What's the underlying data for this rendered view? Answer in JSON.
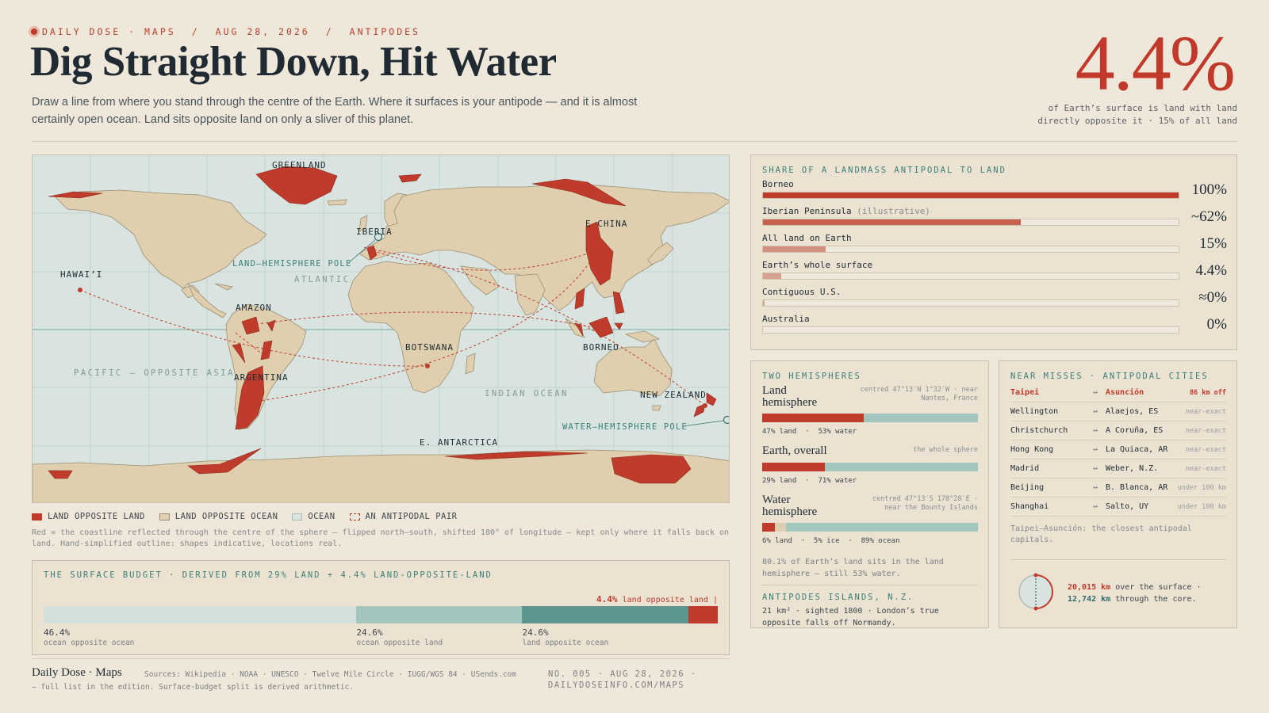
{
  "header": {
    "kicker": [
      "DAILY DOSE · MAPS",
      "AUG 28, 2026",
      "ANTIPODES"
    ],
    "kicker_sep": "/",
    "title": "Dig Straight Down, Hit Water",
    "subtitle": "Draw a line from where you stand through the centre of the Earth. Where it surfaces is your antipode — and it is almost certainly open ocean. Land sits opposite land on only a sliver of this planet.",
    "big_number": "4.4%",
    "big_caption_1": "of Earth’s surface is land with land",
    "big_caption_2": "directly opposite it · 15% of all land"
  },
  "map": {
    "labels": {
      "greenland": "GREENLAND",
      "iberia": "IBERIA",
      "e_china": "E CHINA",
      "hawaii": "HAWAI’I",
      "land_pole": "LAND–HEMISPHERE POLE",
      "atlantic": "ATLANTIC",
      "amazon": "AMAZON",
      "botswana": "BOTSWANA",
      "borneo": "BORNEO",
      "pacific": "PACIFIC — OPPOSITE ASIA",
      "argentina": "ARGENTINA",
      "indian": "INDIAN OCEAN",
      "new_zealand": "NEW ZEALAND",
      "water_pole": "WATER–HEMISPHERE POLE",
      "antarctica": "E. ANTARCTICA"
    },
    "colors": {
      "ocean": "#d9e4e0",
      "land": "#dfcfae",
      "land_opposite_land": "#bf3b2c",
      "grid": "#c4d3ce",
      "equator": "#8fb7ae"
    }
  },
  "legend": {
    "items": [
      "LAND OPPOSITE LAND",
      "LAND OPPOSITE OCEAN",
      "OCEAN",
      "AN ANTIPODAL PAIR"
    ],
    "note": "Red = the coastline reflected through the centre of the sphere — flipped north–south, shifted 180° of longitude — kept only where it falls back on land. Hand-simplified outline: shapes indicative, locations real."
  },
  "budget": {
    "heading": "THE SURFACE BUDGET · DERIVED FROM 29% LAND + 4.4% LAND-OPPOSITE-LAND",
    "flag_value": "4.4%",
    "flag_text": "land opposite land",
    "segments": [
      {
        "pct_label": "46.4%",
        "caption": "ocean opposite ocean",
        "value": 46.4,
        "color": "#d3e1dd"
      },
      {
        "pct_label": "24.6%",
        "caption": "ocean opposite land",
        "value": 24.6,
        "color": "#a2c5bd"
      },
      {
        "pct_label": "24.6%",
        "caption": "land opposite ocean",
        "value": 24.6,
        "color": "#5e958e"
      },
      {
        "pct_label": "",
        "caption": "",
        "value": 4.4,
        "color": "#bf3b2c"
      }
    ]
  },
  "footer": {
    "brand": "Daily Dose · Maps",
    "sources": "Sources: Wikipedia · NOAA · UNESCO · Twelve Mile Circle · IUGG/WGS 84 · USends.com — full list in the edition. Surface-budget split is derived arithmetic.",
    "edition_1": "NO. 005 · AUG 28, 2026 ·",
    "edition_2": "DAILYDOSEINFO.COM/MAPS"
  },
  "share": {
    "heading": "SHARE OF A LANDMASS ANTIPODAL TO LAND",
    "rows": [
      {
        "label": "Borneo",
        "note": "",
        "value_label": "100%",
        "value": 100,
        "color": "#bf3b2c"
      },
      {
        "label": "Iberian Peninsula",
        "note": "(illustrative)",
        "value_label": "~62%",
        "value": 62,
        "color": "#c85e4d"
      },
      {
        "label": "All land on Earth",
        "note": "",
        "value_label": "15%",
        "value": 15,
        "color": "#d4907f"
      },
      {
        "label": "Earth’s whole surface",
        "note": "",
        "value_label": "4.4%",
        "value": 4.4,
        "color": "#d9a190"
      },
      {
        "label": "Contiguous U.S.",
        "note": "",
        "value_label": "≈0%",
        "value": 0.4,
        "color": "#d9a190"
      },
      {
        "label": "Australia",
        "note": "",
        "value_label": "0%",
        "value": 0,
        "color": "#d9a190"
      }
    ]
  },
  "hemispheres": {
    "heading": "TWO HEMISPHERES",
    "rows": [
      {
        "name": "Land hemisphere",
        "where": "centred 47°13′N 1°32′W · near Nantes, France",
        "caption": "47% land  ·  53% water",
        "segments": [
          {
            "value": 47,
            "color": "#bf3b2c"
          },
          {
            "value": 53,
            "color": "#a2c5bd"
          }
        ]
      },
      {
        "name": "Earth, overall",
        "where": "the whole sphere",
        "caption": "29% land  ·  71% water",
        "segments": [
          {
            "value": 29,
            "color": "#bf3b2c"
          },
          {
            "value": 71,
            "color": "#a2c5bd"
          }
        ]
      },
      {
        "name": "Water hemisphere",
        "where": "centred 47°13′S 178°28′E · near the Bounty Islands",
        "caption": "6% land  ·  5% ice  ·  89% ocean",
        "segments": [
          {
            "value": 6,
            "color": "#bf3b2c"
          },
          {
            "value": 5,
            "color": "#dfcfae"
          },
          {
            "value": 89,
            "color": "#a2c5bd"
          }
        ]
      }
    ],
    "note": "80.1% of Earth’s land sits in the land hemisphere — still 53% water.",
    "sub_heading": "ANTIPODES ISLANDS, N.Z.",
    "sub_text": "21 km² · sighted 1800 · London’s true opposite falls off Normandy."
  },
  "near_misses": {
    "heading": "NEAR MISSES · ANTIPODAL CITIES",
    "arrow": "↔",
    "rows": [
      {
        "a": "Taipei",
        "b": "Asunción",
        "d": "86 km off",
        "highlight": true
      },
      {
        "a": "Wellington",
        "b": "Alaejos, ES",
        "d": "near-exact"
      },
      {
        "a": "Christchurch",
        "b": "A Coruña, ES",
        "d": "near-exact"
      },
      {
        "a": "Hong Kong",
        "b": "La Quiaca, AR",
        "d": "near-exact"
      },
      {
        "a": "Madrid",
        "b": "Weber, N.Z.",
        "d": "near-exact"
      },
      {
        "a": "Beijing",
        "b": "B. Blanca, AR",
        "d": "under 100 km"
      },
      {
        "a": "Shanghai",
        "b": "Salto, UY",
        "d": "under 100 km"
      }
    ],
    "caption": "Taipei–Asunción: the closest antipodal capitals.",
    "surface_km": "20,015 km",
    "surface_text": "over the surface ·",
    "core_km": "12,742 km",
    "core_text": "through the core."
  }
}
